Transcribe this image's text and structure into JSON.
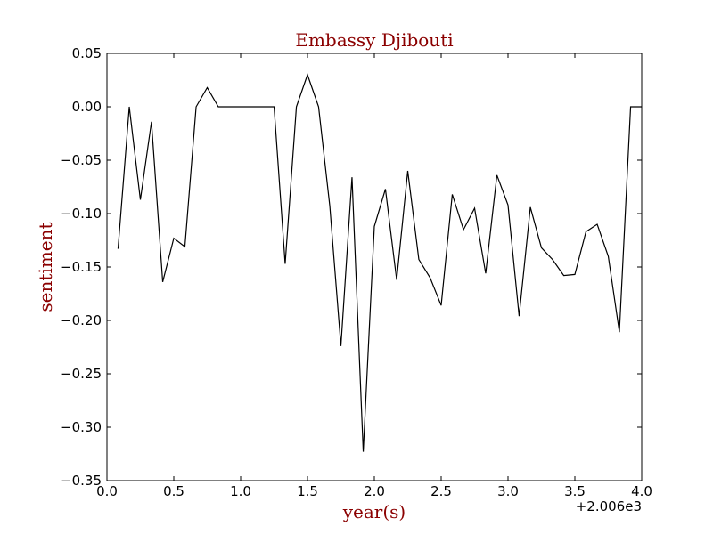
{
  "chart_data": {
    "type": "line",
    "title": "Embassy Djibouti",
    "xlabel": "year(s)",
    "ylabel": "sentiment",
    "x_offset_label": "+2.006e3",
    "xlim": [
      0.0,
      4.0
    ],
    "ylim": [
      -0.35,
      0.05
    ],
    "grid": false,
    "x_ticks": [
      0.0,
      0.5,
      1.0,
      1.5,
      2.0,
      2.5,
      3.0,
      3.5,
      4.0
    ],
    "x_tick_labels": [
      "0.0",
      "0.5",
      "1.0",
      "1.5",
      "2.0",
      "2.5",
      "3.0",
      "3.5",
      "4.0"
    ],
    "y_ticks": [
      0.05,
      0.0,
      -0.05,
      -0.1,
      -0.15,
      -0.2,
      -0.25,
      -0.3,
      -0.35
    ],
    "y_tick_labels": [
      "0.05",
      "0.00",
      "−0.05",
      "−0.10",
      "−0.15",
      "−0.20",
      "−0.25",
      "−0.30",
      "−0.35"
    ],
    "series": [
      {
        "color": "#000000",
        "x": [
          0.083,
          0.167,
          0.25,
          0.333,
          0.417,
          0.5,
          0.583,
          0.667,
          0.75,
          0.833,
          0.917,
          1.0,
          1.083,
          1.167,
          1.25,
          1.333,
          1.417,
          1.5,
          1.583,
          1.667,
          1.75,
          1.833,
          1.917,
          2.0,
          2.083,
          2.167,
          2.25,
          2.333,
          2.417,
          2.5,
          2.583,
          2.667,
          2.75,
          2.833,
          2.917,
          3.0,
          3.083,
          3.167,
          3.25,
          3.333,
          3.417,
          3.5,
          3.583,
          3.667,
          3.75,
          3.833,
          3.917,
          4.0
        ],
        "y": [
          -0.133,
          0.0,
          -0.087,
          -0.014,
          -0.164,
          -0.123,
          -0.131,
          0.0,
          0.018,
          0.0,
          0.0,
          0.0,
          0.0,
          0.0,
          0.0,
          -0.147,
          0.0,
          0.03,
          0.0,
          -0.093,
          -0.224,
          -0.066,
          -0.323,
          -0.112,
          -0.077,
          -0.162,
          -0.06,
          -0.143,
          -0.16,
          -0.186,
          -0.082,
          -0.115,
          -0.095,
          -0.156,
          -0.064,
          -0.092,
          -0.196,
          -0.094,
          -0.132,
          -0.143,
          -0.158,
          -0.157,
          -0.117,
          -0.11,
          -0.14,
          -0.211,
          0.0,
          0.0
        ]
      }
    ]
  },
  "colors": {
    "title": "#8b0000",
    "axis_label": "#8b0000",
    "line": "#000000",
    "frame": "#000000"
  }
}
